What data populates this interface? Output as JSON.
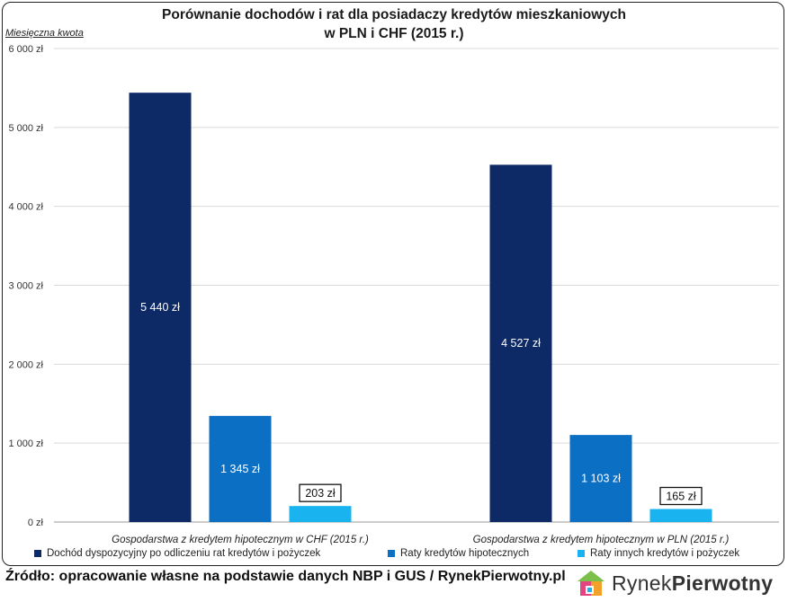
{
  "chart_data": {
    "type": "bar",
    "title": "Porównanie dochodów i rat dla posiadaczy kredytów mieszkaniowych",
    "subtitle": "w PLN i CHF (2015 r.)",
    "ylabel": "Miesięczna kwota",
    "ylim": [
      0,
      6000
    ],
    "yticks": [
      "0 zł",
      "1 000 zł",
      "2 000 zł",
      "3 000 zł",
      "4 000 zł",
      "5 000 zł",
      "6 000 zł"
    ],
    "grid": true,
    "legend_position": "bottom",
    "categories": [
      "Gospodarstwa z kredytem hipotecznym w CHF (2015 r.)",
      "Gospodarstwa z kredytem hipotecznym w PLN (2015 r.)"
    ],
    "series": [
      {
        "name": "Dochód dyspozycyjny po odliczeniu rat kredytów i pożyczek",
        "color": "#0d2a66",
        "values": [
          5440,
          4527
        ],
        "labels": [
          "5 440 zł",
          "4 527 zł"
        ]
      },
      {
        "name": "Raty kredytów hipotecznych",
        "color": "#0b6fc4",
        "values": [
          1345,
          1103
        ],
        "labels": [
          "1 345 zł",
          "1 103 zł"
        ]
      },
      {
        "name": "Raty innych kredytów i pożyczek",
        "color": "#19b4f0",
        "values": [
          203,
          165
        ],
        "labels": [
          "203 zł",
          "165 zł"
        ]
      }
    ]
  },
  "footer": {
    "source": "Źródło: opracowanie własne na podstawie danych NBP i GUS / RynekPierwotny.pl",
    "logo_part1": "Rynek",
    "logo_part2": "Pierwotny"
  }
}
